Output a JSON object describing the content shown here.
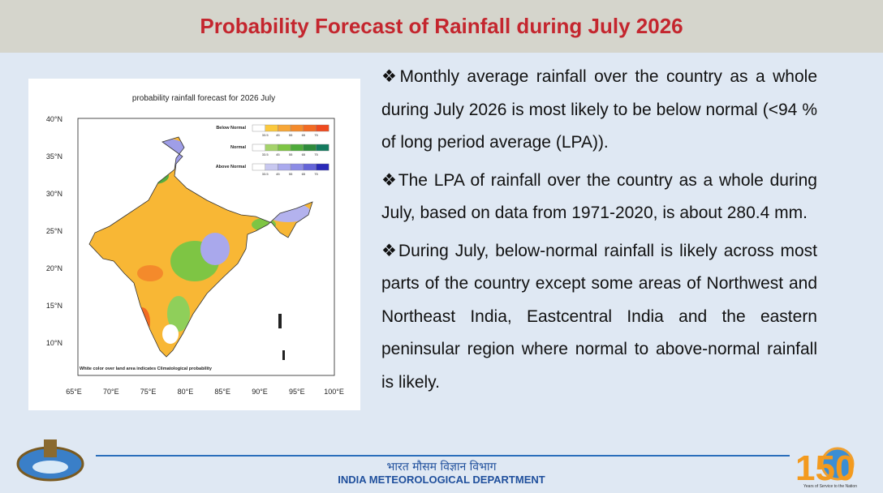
{
  "header": {
    "title": "Probability Forecast of Rainfall during July 2026"
  },
  "map": {
    "title": "probability rainfall forecast for 2026 July",
    "lat_labels": [
      "40°N",
      "35°N",
      "30°N",
      "25°N",
      "20°N",
      "15°N",
      "10°N"
    ],
    "lon_labels": [
      "65°E",
      "70°E",
      "75°E",
      "80°E",
      "85°E",
      "90°E",
      "95°E",
      "100°E"
    ],
    "legend": [
      {
        "label": "Below Normal",
        "ticks": [
          "33.5",
          "45",
          "55",
          "65",
          "75"
        ]
      },
      {
        "label": "Normal",
        "ticks": [
          "33.5",
          "45",
          "55",
          "65",
          "75"
        ]
      },
      {
        "label": "Above Normal",
        "ticks": [
          "33.5",
          "45",
          "55",
          "65",
          "75"
        ]
      }
    ],
    "note": "White color over land area indicates Climatological probability"
  },
  "bullets": [
    "❖Monthly average rainfall over the country as a whole during July 2026 is most likely to be below normal (<94 % of long period average (LPA)).",
    "❖The LPA of rainfall over the country as a whole during July, based on data from 1971-2020, is about 280.4 mm.",
    "❖During July, below-normal rainfall is likely across most parts of the country except some areas of Northwest and Northeast India, Eastcentral India and the eastern peninsular region where normal to above-normal rainfall is likely."
  ],
  "footer": {
    "hindi": "भारत मौसम विज्ञान विभाग",
    "english": "INDIA METEOROLOGICAL DEPARTMENT",
    "logo_number": "150",
    "logo_text": "Years of Service to the Nation"
  }
}
